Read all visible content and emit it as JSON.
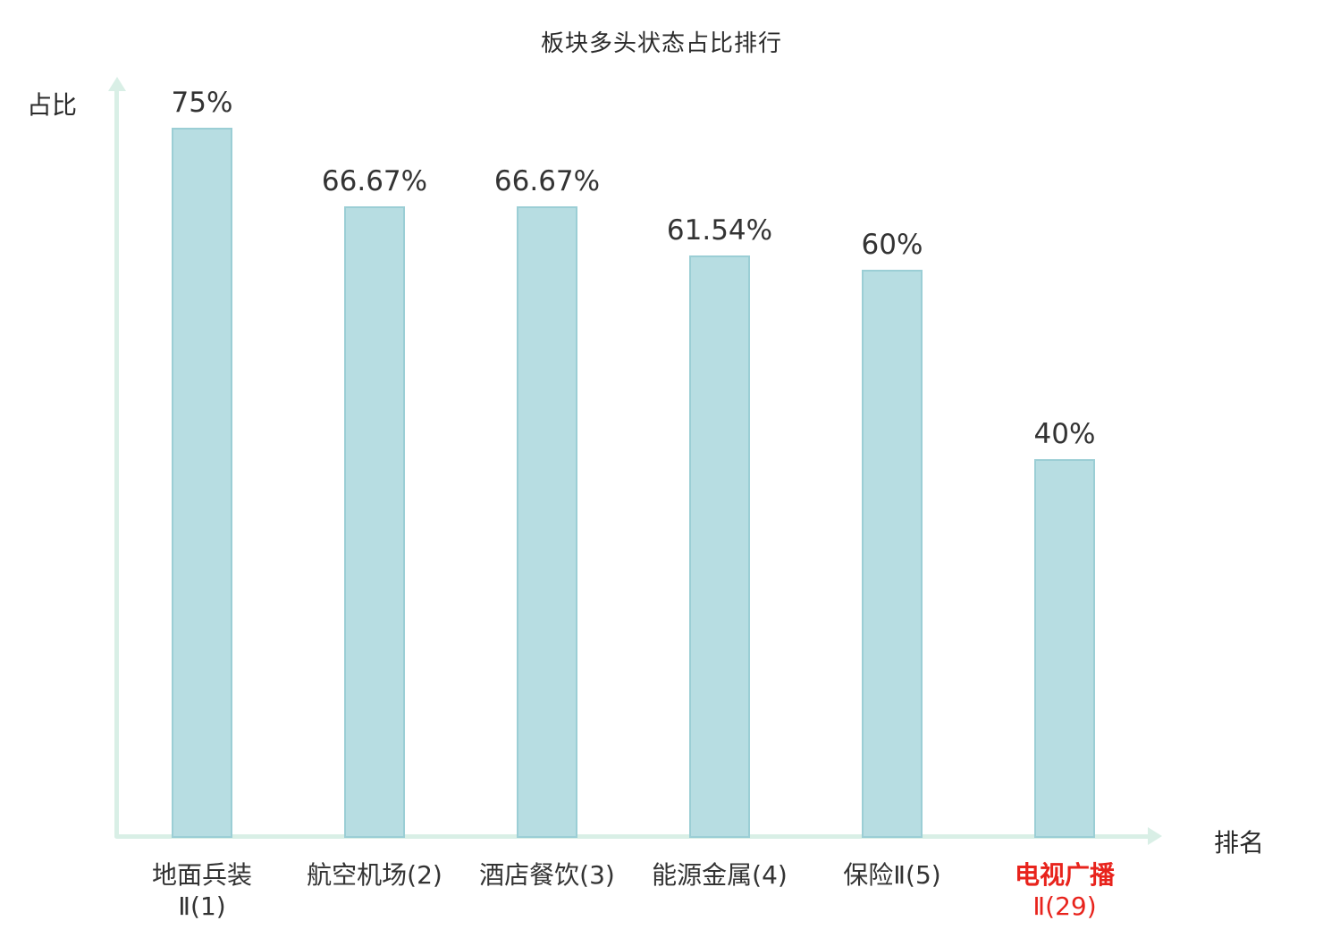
{
  "title": "板块多头状态占比排行",
  "y_axis_label": "占比",
  "x_axis_label": "排名",
  "colors": {
    "bar_fill": "#b7dde2",
    "bar_border": "#9bced5",
    "axis": "#d9efe6",
    "text": "#333333",
    "highlight_text": "#e8231c"
  },
  "chart_data": {
    "type": "bar",
    "title": "板块多头状态占比排行",
    "xlabel": "排名",
    "ylabel": "占比",
    "ylim": [
      0,
      80
    ],
    "grid": false,
    "legend": "none",
    "categories": [
      "地面兵装Ⅱ(1)",
      "航空机场(2)",
      "酒店餐饮(3)",
      "能源金属(4)",
      "保险Ⅱ(5)",
      "电视广播Ⅱ(29)"
    ],
    "category_lines": [
      [
        "地面兵装",
        "Ⅱ(1)"
      ],
      [
        "航空机场(2)"
      ],
      [
        "酒店餐饮(3)"
      ],
      [
        "能源金属(4)"
      ],
      [
        "保险Ⅱ(5)"
      ],
      [
        "电视广播",
        "Ⅱ(29)"
      ]
    ],
    "values": [
      75,
      66.67,
      66.67,
      61.54,
      60,
      40
    ],
    "value_labels": [
      "75%",
      "66.67%",
      "66.67%",
      "61.54%",
      "60%",
      "40%"
    ],
    "highlight_index": 5
  }
}
